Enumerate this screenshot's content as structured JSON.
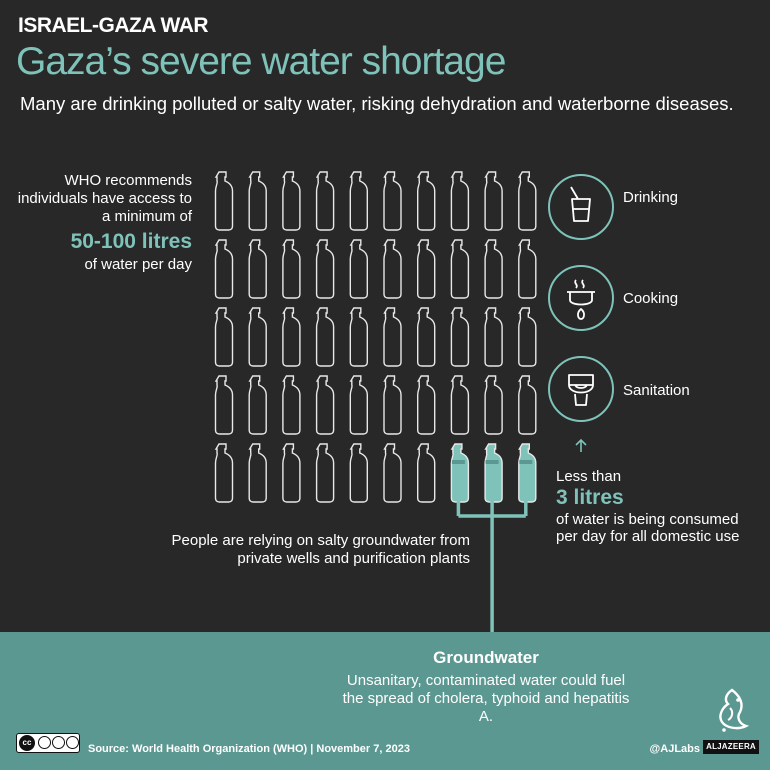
{
  "header": {
    "kicker": "ISRAEL-GAZA WAR",
    "title": "Gaza’s severe water shortage",
    "subtitle": "Many are drinking polluted or salty water, risking dehydration and waterborne diseases."
  },
  "who": {
    "line1": "WHO recommends individuals have access to a minimum of",
    "amount": "50-100 litres",
    "line2": "of water per day"
  },
  "bottles": {
    "columns": 10,
    "rows": 5,
    "filled_count": 3,
    "colors": {
      "outline": "#e8e8e8",
      "fill": "#7ec2ba",
      "pipe": "#7ec2ba"
    }
  },
  "uses": [
    {
      "label": "Drinking",
      "icon": "drinking-glass-icon"
    },
    {
      "label": "Cooking",
      "icon": "cooking-pot-icon"
    },
    {
      "label": "Sanitation",
      "icon": "toilet-icon"
    }
  ],
  "consumption": {
    "line1": "Less than",
    "amount": "3 litres",
    "line2": "of water is being consumed per day for all domestic use"
  },
  "relying": "People are relying on salty groundwater from private wells and purification plants",
  "groundwater": {
    "title": "Groundwater",
    "text": "Unsanitary, contaminated water could fuel the spread of cholera, typhoid and hepatitis A."
  },
  "footer": {
    "license": "cc-by-nc-sa",
    "license_tags": [
      "BY",
      "NC",
      "SA"
    ],
    "source": "Source: World Health Organization (WHO)  |  November 7, 2023",
    "handle": "@AJLabs",
    "brand": "ALJAZEERA"
  },
  "colors": {
    "background": "#282828",
    "accent": "#7ec2ba",
    "ground": "#5b9891"
  }
}
